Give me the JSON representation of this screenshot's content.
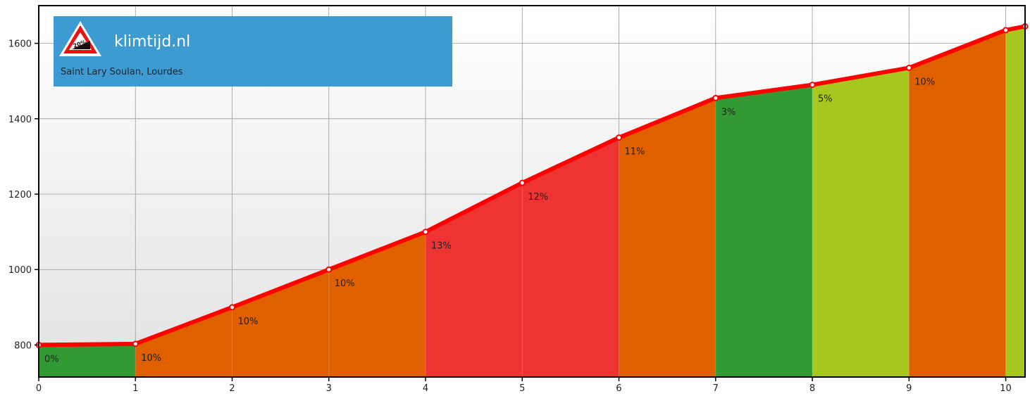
{
  "brand": {
    "name": "klimtijd.nl",
    "subtitle": "Saint Lary Soulan, Lourdes",
    "logo_text": "20%",
    "logo_icon": "steep-grade-warning-icon",
    "box_color": "#3d9bd1"
  },
  "chart_data": {
    "type": "area",
    "x": [
      0,
      1,
      2,
      3,
      4,
      5,
      6,
      7,
      8,
      9,
      10,
      10.2
    ],
    "y": [
      800,
      803,
      900,
      1000,
      1100,
      1230,
      1350,
      1455,
      1490,
      1535,
      1635,
      1645
    ],
    "segments": [
      {
        "from": 0,
        "to": 1,
        "label": "0%",
        "color": "#339933"
      },
      {
        "from": 1,
        "to": 2,
        "label": "10%",
        "color": "#e06000"
      },
      {
        "from": 2,
        "to": 3,
        "label": "10%",
        "color": "#e06000"
      },
      {
        "from": 3,
        "to": 4,
        "label": "10%",
        "color": "#e06000"
      },
      {
        "from": 4,
        "to": 5,
        "label": "13%",
        "color": "#ee3333"
      },
      {
        "from": 5,
        "to": 6,
        "label": "12%",
        "color": "#ee3333"
      },
      {
        "from": 6,
        "to": 7,
        "label": "11%",
        "color": "#e06000"
      },
      {
        "from": 7,
        "to": 8,
        "label": "3%",
        "color": "#339933"
      },
      {
        "from": 8,
        "to": 9,
        "label": "5%",
        "color": "#a6c81e"
      },
      {
        "from": 9,
        "to": 10,
        "label": "10%",
        "color": "#e06000"
      },
      {
        "from": 10,
        "to": 10.2,
        "label": "",
        "color": "#a6c81e"
      }
    ],
    "xticks": [
      "0",
      "1",
      "2",
      "3",
      "4",
      "5",
      "6",
      "7",
      "8",
      "9",
      "10"
    ],
    "yticks": [
      "800",
      "1000",
      "1200",
      "1400",
      "1600"
    ],
    "xlim": [
      0,
      10.2
    ],
    "ylim": [
      715,
      1700
    ],
    "line_color": "#ff0000",
    "grid": true,
    "title": "",
    "xlabel": "",
    "ylabel": ""
  }
}
